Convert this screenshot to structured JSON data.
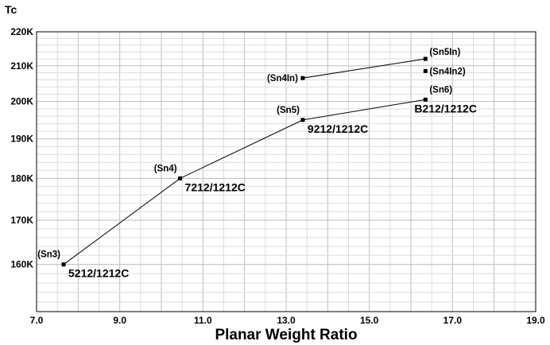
{
  "chart_data": {
    "type": "line",
    "title": "",
    "xlabel": "Planar Weight Ratio",
    "ylabel": "Tc",
    "xlim": [
      7.0,
      19.0
    ],
    "ylim": [
      150,
      220
    ],
    "y_scale": "log",
    "x_ticks": [
      "7.0",
      "9.0",
      "11.0",
      "13.0",
      "15.0",
      "17.0",
      "19.0"
    ],
    "y_ticks": [
      {
        "value": 160,
        "label": "160K"
      },
      {
        "value": 170,
        "label": "170K"
      },
      {
        "value": 180,
        "label": "180K"
      },
      {
        "value": 190,
        "label": "190K"
      },
      {
        "value": 200,
        "label": "200K"
      },
      {
        "value": 210,
        "label": "210K"
      },
      {
        "value": 220,
        "label": "220K"
      }
    ],
    "grid": true,
    "series": [
      {
        "points": [
          {
            "x": 7.65,
            "y": 160,
            "tag": "(Sn3)",
            "compound": "5212/1212C"
          },
          {
            "x": 10.45,
            "y": 180,
            "tag": "(Sn4)",
            "compound": "7212/1212C"
          },
          {
            "x": 13.4,
            "y": 195,
            "tag": "(Sn5)",
            "compound": "9212/1212C"
          },
          {
            "x": 16.35,
            "y": 200.5,
            "tag": "(Sn6)",
            "compound": "B212/1212C"
          }
        ]
      },
      {
        "points": [
          {
            "x": 13.4,
            "y": 206.5,
            "tag": "(Sn4In)",
            "compound": ""
          },
          {
            "x": 16.35,
            "y": 212,
            "tag": "(Sn5In)",
            "compound": ""
          }
        ]
      },
      {
        "points": [
          {
            "x": 16.35,
            "y": 208.5,
            "tag": "(Sn4In2)",
            "compound": ""
          }
        ]
      }
    ]
  }
}
